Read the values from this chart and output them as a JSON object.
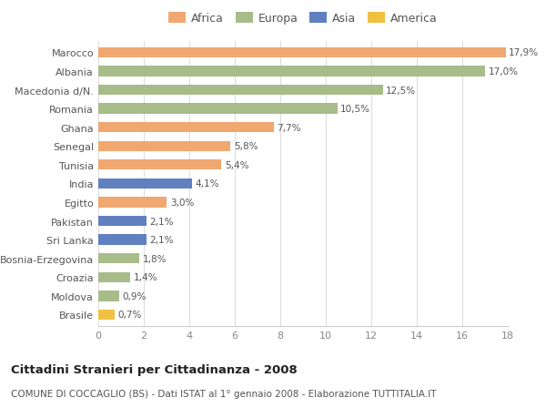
{
  "categories": [
    "Brasile",
    "Moldova",
    "Croazia",
    "Bosnia-Erzegovina",
    "Sri Lanka",
    "Pakistan",
    "Egitto",
    "India",
    "Tunisia",
    "Senegal",
    "Ghana",
    "Romania",
    "Macedonia d/N.",
    "Albania",
    "Marocco"
  ],
  "values": [
    0.7,
    0.9,
    1.4,
    1.8,
    2.1,
    2.1,
    3.0,
    4.1,
    5.4,
    5.8,
    7.7,
    10.5,
    12.5,
    17.0,
    17.9
  ],
  "labels": [
    "0,7%",
    "0,9%",
    "1,4%",
    "1,8%",
    "2,1%",
    "2,1%",
    "3,0%",
    "4,1%",
    "5,4%",
    "5,8%",
    "7,7%",
    "10,5%",
    "12,5%",
    "17,0%",
    "17,9%"
  ],
  "colors": [
    "#f0c040",
    "#a8bc8a",
    "#a8bc8a",
    "#a8bc8a",
    "#6080c0",
    "#6080c0",
    "#f0a870",
    "#6080c0",
    "#f0a870",
    "#f0a870",
    "#f0a870",
    "#a8bc8a",
    "#a8bc8a",
    "#a8bc8a",
    "#f0a870"
  ],
  "legend_labels": [
    "Africa",
    "Europa",
    "Asia",
    "America"
  ],
  "legend_colors": [
    "#f0a870",
    "#a8bc8a",
    "#6080c0",
    "#f0c040"
  ],
  "title": "Cittadini Stranieri per Cittadinanza - 2008",
  "subtitle": "COMUNE DI COCCAGLIO (BS) - Dati ISTAT al 1° gennaio 2008 - Elaborazione TUTTITALIA.IT",
  "xlim": [
    0,
    18
  ],
  "xticks": [
    0,
    2,
    4,
    6,
    8,
    10,
    12,
    14,
    16,
    18
  ],
  "background_color": "#ffffff",
  "bar_height": 0.55,
  "grid_color": "#dddddd"
}
